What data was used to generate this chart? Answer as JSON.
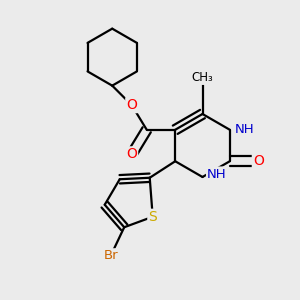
{
  "bg_color": "#ebebeb",
  "bond_color": "#000000",
  "bond_width": 1.6,
  "atom_colors": {
    "O": "#ff0000",
    "N": "#0000cd",
    "S": "#ccaa00",
    "Br": "#cc6600",
    "C": "#000000",
    "H": "#008b8b"
  },
  "xlim": [
    0,
    10
  ],
  "ylim": [
    0,
    10
  ],
  "figsize": [
    3.0,
    3.0
  ],
  "dpi": 100
}
